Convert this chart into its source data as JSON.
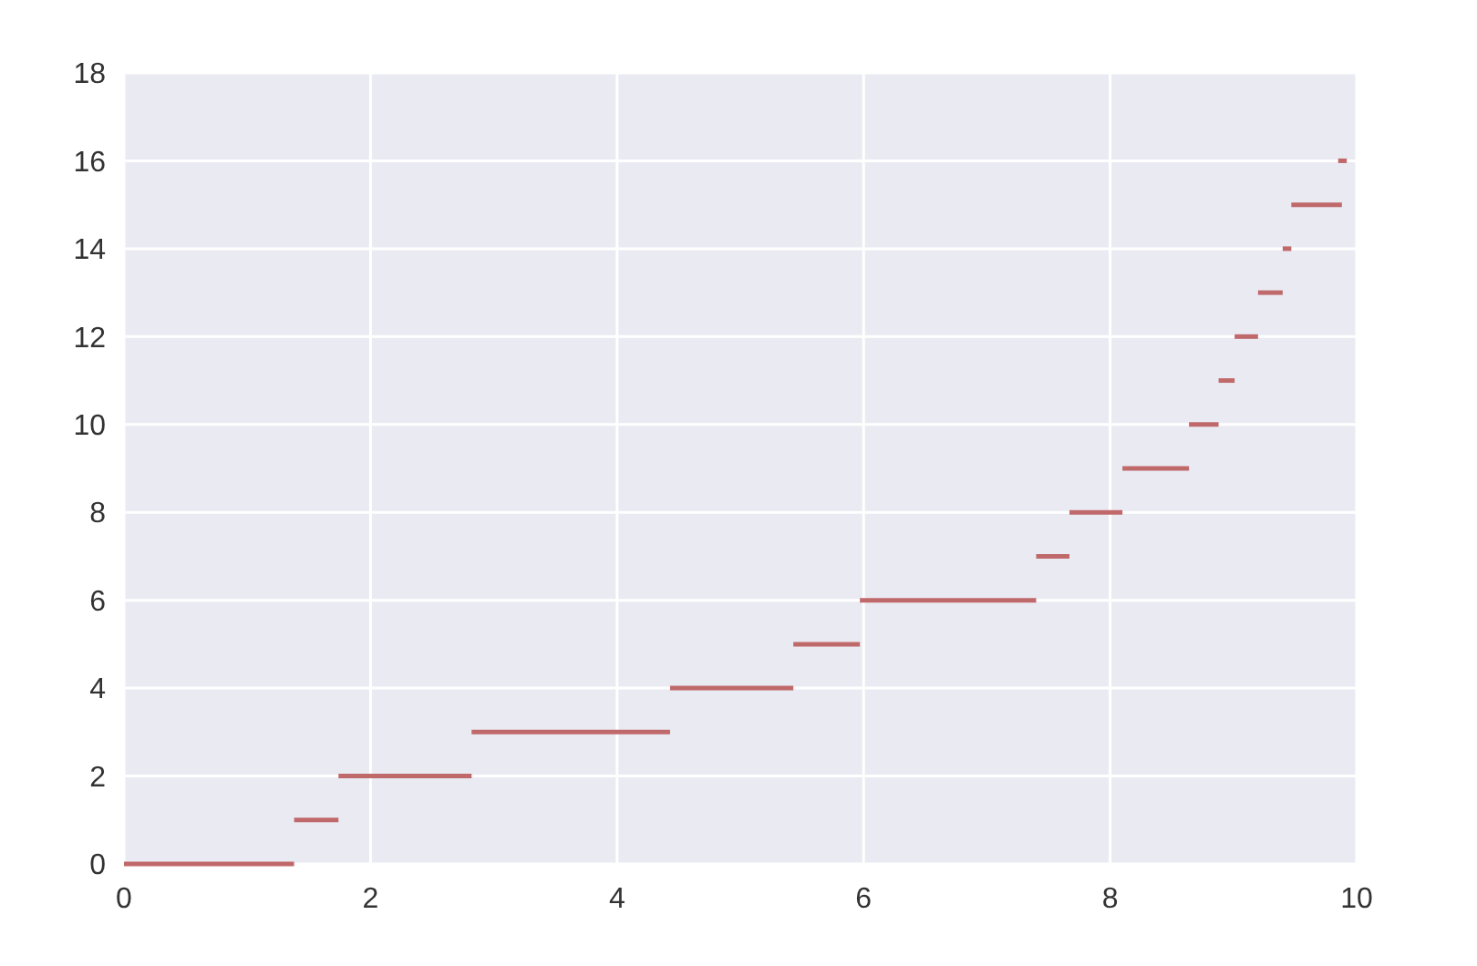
{
  "chart_data": {
    "type": "line",
    "xlim": [
      0,
      10
    ],
    "ylim": [
      0,
      18
    ],
    "xticks": [
      0,
      2,
      4,
      6,
      8,
      10
    ],
    "yticks": [
      0,
      2,
      4,
      6,
      8,
      10,
      12,
      14,
      16,
      18
    ],
    "grid": true,
    "marker": "none",
    "series": [
      {
        "color": "#c0696b",
        "x": [
          0,
          1.38
        ],
        "values": [
          0,
          0
        ]
      },
      {
        "color": "#c0696b",
        "x": [
          1.38,
          1.74
        ],
        "values": [
          1,
          1
        ]
      },
      {
        "color": "#c0696b",
        "x": [
          1.74,
          2.82
        ],
        "values": [
          2,
          2
        ]
      },
      {
        "color": "#c0696b",
        "x": [
          2.82,
          4.43
        ],
        "values": [
          3,
          3
        ]
      },
      {
        "color": "#c0696b",
        "x": [
          4.43,
          5.43
        ],
        "values": [
          4,
          4
        ]
      },
      {
        "color": "#c0696b",
        "x": [
          5.43,
          5.97
        ],
        "values": [
          5,
          5
        ]
      },
      {
        "color": "#c0696b",
        "x": [
          5.97,
          7.4
        ],
        "values": [
          6,
          6
        ]
      },
      {
        "color": "#c0696b",
        "x": [
          7.4,
          7.67
        ],
        "values": [
          7,
          7
        ]
      },
      {
        "color": "#c0696b",
        "x": [
          7.67,
          8.1
        ],
        "values": [
          8,
          8
        ]
      },
      {
        "color": "#c0696b",
        "x": [
          8.1,
          8.64
        ],
        "values": [
          9,
          9
        ]
      },
      {
        "color": "#c0696b",
        "x": [
          8.64,
          8.88
        ],
        "values": [
          10,
          10
        ]
      },
      {
        "color": "#c0696b",
        "x": [
          8.88,
          9.01
        ],
        "values": [
          11,
          11
        ]
      },
      {
        "color": "#c0696b",
        "x": [
          9.01,
          9.2
        ],
        "values": [
          12,
          12
        ]
      },
      {
        "color": "#c0696b",
        "x": [
          9.2,
          9.4
        ],
        "values": [
          13,
          13
        ]
      },
      {
        "color": "#c0696b",
        "x": [
          9.4,
          9.47
        ],
        "values": [
          14,
          14
        ]
      },
      {
        "color": "#c0696b",
        "x": [
          9.47,
          9.88
        ],
        "values": [
          15,
          15
        ]
      },
      {
        "color": "#c0696b",
        "x": [
          9.85,
          9.92
        ],
        "values": [
          16,
          16
        ]
      }
    ]
  }
}
